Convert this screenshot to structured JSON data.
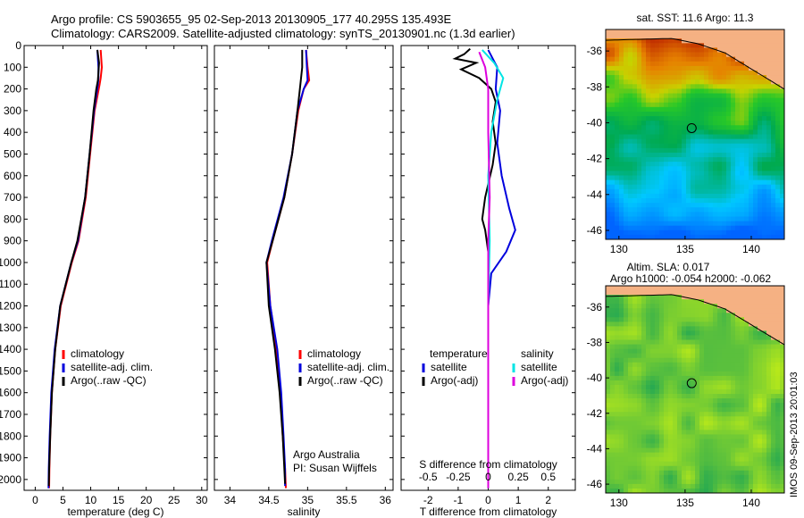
{
  "header": {
    "line1": "Argo profile: CS 5903655_95 02-Sep-2013 20130905_177 40.295S 135.493E",
    "line2": "Climatology: CARS2009. Satellite-adjusted climatology: synTS_20130901.nc (1.3d earlier)"
  },
  "side_stamp": "IMOS 09-Sep-2013 20:01:03",
  "colors": {
    "climatology": "#ff0000",
    "satellite": "#0000dd",
    "argo": "#000000",
    "salinity_satellite": "#00e5e5",
    "salinity_argo": "#dd00dd",
    "land": "#f5b183"
  },
  "chart_data": [
    {
      "type": "line",
      "id": "temperature",
      "xlabel": "temperature (deg C)",
      "xlim": [
        -2,
        31
      ],
      "ylim": [
        2050,
        0
      ],
      "xticks": [
        0,
        5,
        10,
        15,
        20,
        25,
        30
      ],
      "yticks": [
        0,
        100,
        200,
        300,
        400,
        500,
        600,
        700,
        800,
        900,
        1000,
        1100,
        1200,
        1300,
        1400,
        1500,
        1600,
        1700,
        1800,
        1900,
        2000
      ],
      "legend": [
        "climatology",
        "satellite-adj. clim.",
        "Argo(..raw -QC)"
      ],
      "legend_position": "lower-center",
      "series": [
        {
          "name": "climatology",
          "color": "#ff0000",
          "points": [
            [
              11.8,
              20
            ],
            [
              12.0,
              100
            ],
            [
              11.8,
              150
            ],
            [
              11.6,
              180
            ],
            [
              10.7,
              300
            ],
            [
              9.9,
              500
            ],
            [
              9.1,
              700
            ],
            [
              7.8,
              900
            ],
            [
              6.6,
              1000
            ],
            [
              4.6,
              1200
            ],
            [
              3.6,
              1400
            ],
            [
              3.0,
              1600
            ],
            [
              2.7,
              1800
            ],
            [
              2.55,
              1950
            ],
            [
              2.5,
              2040
            ]
          ]
        },
        {
          "name": "satellite-adj. clim.",
          "color": "#0000dd",
          "points": [
            [
              11.2,
              20
            ],
            [
              11.4,
              100
            ],
            [
              11.4,
              150
            ],
            [
              11.3,
              180
            ],
            [
              10.6,
              300
            ],
            [
              9.8,
              500
            ],
            [
              9.0,
              700
            ],
            [
              7.7,
              900
            ],
            [
              6.5,
              1000
            ],
            [
              4.5,
              1200
            ],
            [
              3.5,
              1400
            ],
            [
              2.9,
              1600
            ],
            [
              2.6,
              1800
            ],
            [
              2.45,
              1950
            ],
            [
              2.4,
              2040
            ]
          ]
        },
        {
          "name": "Argo(..raw -QC)",
          "color": "#000000",
          "points": [
            [
              11.2,
              20
            ],
            [
              11.5,
              80
            ],
            [
              11.3,
              160
            ],
            [
              11.0,
              200
            ],
            [
              10.5,
              300
            ],
            [
              9.8,
              500
            ],
            [
              9.0,
              700
            ],
            [
              7.6,
              900
            ],
            [
              6.5,
              1000
            ],
            [
              4.5,
              1200
            ],
            [
              3.6,
              1400
            ],
            [
              3.0,
              1600
            ],
            [
              2.7,
              1800
            ],
            [
              2.5,
              1950
            ],
            [
              2.45,
              2030
            ]
          ]
        }
      ]
    },
    {
      "type": "line",
      "id": "salinity",
      "xlabel": "salinity",
      "xlim": [
        33.8,
        36.1
      ],
      "ylim": [
        2050,
        0
      ],
      "xticks": [
        34,
        34.5,
        35,
        35.5,
        36
      ],
      "legend": [
        "climatology",
        "satellite-adj. clim.",
        "Argo(..raw -QC)"
      ],
      "legend_position": "lower-center",
      "annotation": [
        "Argo Australia",
        "PI: Susan Wijffels"
      ],
      "series": [
        {
          "name": "climatology",
          "color": "#ff0000",
          "points": [
            [
              34.98,
              20
            ],
            [
              35.0,
              100
            ],
            [
              35.02,
              160
            ],
            [
              34.95,
              200
            ],
            [
              34.88,
              300
            ],
            [
              34.8,
              500
            ],
            [
              34.7,
              700
            ],
            [
              34.55,
              900
            ],
            [
              34.48,
              1000
            ],
            [
              34.52,
              1200
            ],
            [
              34.6,
              1400
            ],
            [
              34.65,
              1600
            ],
            [
              34.68,
              1800
            ],
            [
              34.71,
              1950
            ],
            [
              34.72,
              2040
            ]
          ]
        },
        {
          "name": "satellite-adj. clim.",
          "color": "#0000dd",
          "points": [
            [
              34.98,
              20
            ],
            [
              34.99,
              100
            ],
            [
              35.0,
              160
            ],
            [
              34.95,
              200
            ],
            [
              34.87,
              300
            ],
            [
              34.8,
              500
            ],
            [
              34.69,
              700
            ],
            [
              34.54,
              900
            ],
            [
              34.47,
              1000
            ],
            [
              34.52,
              1200
            ],
            [
              34.61,
              1400
            ],
            [
              34.66,
              1600
            ],
            [
              34.69,
              1800
            ],
            [
              34.71,
              1950
            ],
            [
              34.71,
              2030
            ]
          ]
        },
        {
          "name": "Argo(..raw -QC)",
          "color": "#000000",
          "points": [
            [
              34.93,
              20
            ],
            [
              34.93,
              100
            ],
            [
              34.9,
              200
            ],
            [
              34.87,
              300
            ],
            [
              34.8,
              500
            ],
            [
              34.7,
              700
            ],
            [
              34.55,
              900
            ],
            [
              34.47,
              1000
            ],
            [
              34.5,
              1200
            ],
            [
              34.58,
              1400
            ],
            [
              34.64,
              1600
            ],
            [
              34.68,
              1800
            ],
            [
              34.7,
              1950
            ],
            [
              34.71,
              2020
            ]
          ]
        }
      ]
    },
    {
      "type": "line",
      "id": "difference",
      "xlabel": "T difference from climatology",
      "top_axis_label": "S difference from climatology",
      "xlim": [
        -2.9,
        2.9
      ],
      "ylim": [
        2050,
        0
      ],
      "xticks": [
        -2,
        -1,
        0,
        1,
        2
      ],
      "top_ticks": [
        "-0.5",
        "-0.25",
        "0",
        "0.25",
        "0.5"
      ],
      "legend": {
        "temperature": {
          "title": "temperature",
          "items": [
            "satellite",
            "Argo(-adj)"
          ]
        },
        "salinity": {
          "title": "salinity",
          "items": [
            "satellite",
            "Argo(-adj)"
          ]
        }
      },
      "legend_position": "lower-center",
      "series": [
        {
          "name": "temperature satellite",
          "color": "#0000dd",
          "points": [
            [
              0.0,
              20
            ],
            [
              0.3,
              100
            ],
            [
              0.25,
              200
            ],
            [
              0.4,
              300
            ],
            [
              0.3,
              450
            ],
            [
              0.45,
              600
            ],
            [
              0.7,
              750
            ],
            [
              0.9,
              850
            ],
            [
              0.6,
              950
            ],
            [
              0.1,
              1050
            ],
            [
              0.0,
              1200
            ],
            [
              0.0,
              1500
            ],
            [
              0.0,
              1800
            ],
            [
              0.0,
              2040
            ]
          ]
        },
        {
          "name": "temperature Argo(-adj)",
          "color": "#000000",
          "points": [
            [
              -0.6,
              15
            ],
            [
              -0.8,
              40
            ],
            [
              -1.1,
              60
            ],
            [
              -0.4,
              80
            ],
            [
              -0.9,
              110
            ],
            [
              -0.3,
              150
            ],
            [
              0.1,
              200
            ],
            [
              0.25,
              260
            ],
            [
              0.15,
              350
            ],
            [
              0.25,
              450
            ],
            [
              0.15,
              550
            ],
            [
              -0.1,
              700
            ],
            [
              -0.2,
              800
            ],
            [
              -0.1,
              850
            ],
            [
              0.0,
              950
            ],
            [
              0.0,
              1200
            ],
            [
              0.0,
              1500
            ],
            [
              0.0,
              1800
            ],
            [
              0.0,
              2030
            ]
          ]
        },
        {
          "name": "salinity satellite",
          "color": "#00e5e5",
          "points": [
            [
              -0.2,
              20
            ],
            [
              0.2,
              80
            ],
            [
              0.5,
              150
            ],
            [
              0.3,
              250
            ],
            [
              0.1,
              400
            ],
            [
              0.0,
              600
            ],
            [
              0.05,
              900
            ],
            [
              0.0,
              1200
            ],
            [
              0.0,
              1500
            ],
            [
              0.0,
              1800
            ],
            [
              0.0,
              2040
            ]
          ]
        },
        {
          "name": "salinity Argo(-adj)",
          "color": "#dd00dd",
          "points": [
            [
              -0.3,
              30
            ],
            [
              -0.1,
              100
            ],
            [
              0.0,
              200
            ],
            [
              0.0,
              400
            ],
            [
              0.05,
              700
            ],
            [
              0.0,
              900
            ],
            [
              0.0,
              1200
            ],
            [
              0.0,
              1500
            ],
            [
              0.0,
              1800
            ],
            [
              0.0,
              2040
            ]
          ]
        }
      ]
    },
    {
      "type": "heatmap",
      "id": "sst_map",
      "title": "sat. SST: 11.6 Argo: 11.3",
      "xlim": [
        129,
        142.5
      ],
      "ylim": [
        -46.5,
        -34.8
      ],
      "xticks": [
        130,
        135,
        140
      ],
      "yticks": [
        -36,
        -38,
        -40,
        -42,
        -44,
        -46
      ],
      "marker": {
        "lon": 135.5,
        "lat": -40.3
      }
    },
    {
      "type": "heatmap",
      "id": "sla_map",
      "title_line1": "Altim. SLA: 0.017",
      "title_line2": "Argo h1000: -0.054 h2000: -0.062",
      "xlim": [
        129,
        142.5
      ],
      "ylim": [
        -46.5,
        -34.8
      ],
      "xticks": [
        130,
        135,
        140
      ],
      "yticks": [
        -36,
        -38,
        -40,
        -42,
        -44,
        -46
      ],
      "marker": {
        "lon": 135.5,
        "lat": -40.3
      }
    }
  ]
}
